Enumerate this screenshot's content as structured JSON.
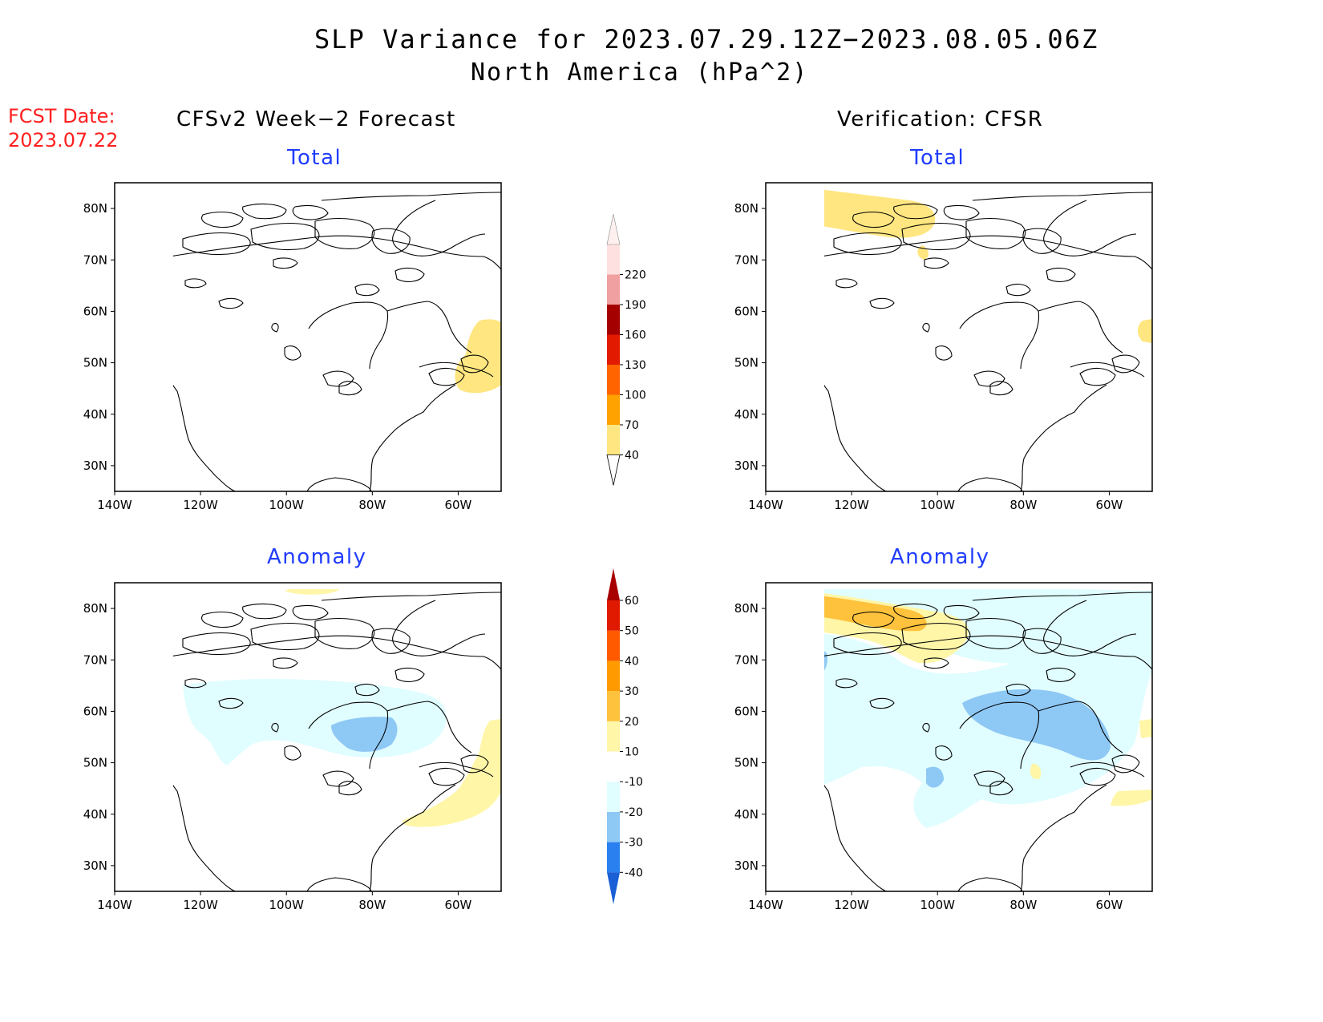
{
  "header": {
    "title": "SLP Variance for 2023.07.29.12Z−2023.08.05.06Z",
    "subtitle": "North America (hPa^2)"
  },
  "fcst": {
    "label": "FCST Date:",
    "date": "2023.07.22"
  },
  "columns": {
    "left": "CFSv2 Week−2 Forecast",
    "right": "Verification: CFSR"
  },
  "panels": [
    {
      "title": "Total"
    },
    {
      "title": "Total"
    },
    {
      "title": "Anomaly"
    },
    {
      "title": "Anomaly"
    }
  ],
  "axes": {
    "lon_labels": [
      "140W",
      "120W",
      "100W",
      "80W",
      "60W"
    ],
    "lat_labels": [
      "80N",
      "70N",
      "60N",
      "50N",
      "40N",
      "30N"
    ],
    "lon_values": [
      -140,
      -120,
      -100,
      -80,
      -60
    ],
    "lat_values": [
      80,
      70,
      60,
      50,
      40,
      30
    ],
    "lon_range": [
      -140,
      -50
    ],
    "lat_range": [
      25,
      85
    ]
  },
  "colorbars": {
    "total": {
      "levels": [
        "40",
        "70",
        "100",
        "130",
        "160",
        "190",
        "220"
      ],
      "colors": [
        "#ffe680",
        "#ffa200",
        "#ff6400",
        "#e11a00",
        "#a50000",
        "#f0a0a0",
        "#ffe0e0"
      ]
    },
    "anomaly": {
      "levels": [
        "-40",
        "-30",
        "-20",
        "-10",
        "10",
        "20",
        "30",
        "40",
        "50",
        "60"
      ],
      "colors": [
        "#1a5fd6",
        "#2a80ef",
        "#8ec8f5",
        "#e0fdff",
        "#ffffff",
        "#fff6a8",
        "#ffc23c",
        "#ff9a00",
        "#ff5a00",
        "#e01a00",
        "#a80000"
      ]
    }
  }
}
